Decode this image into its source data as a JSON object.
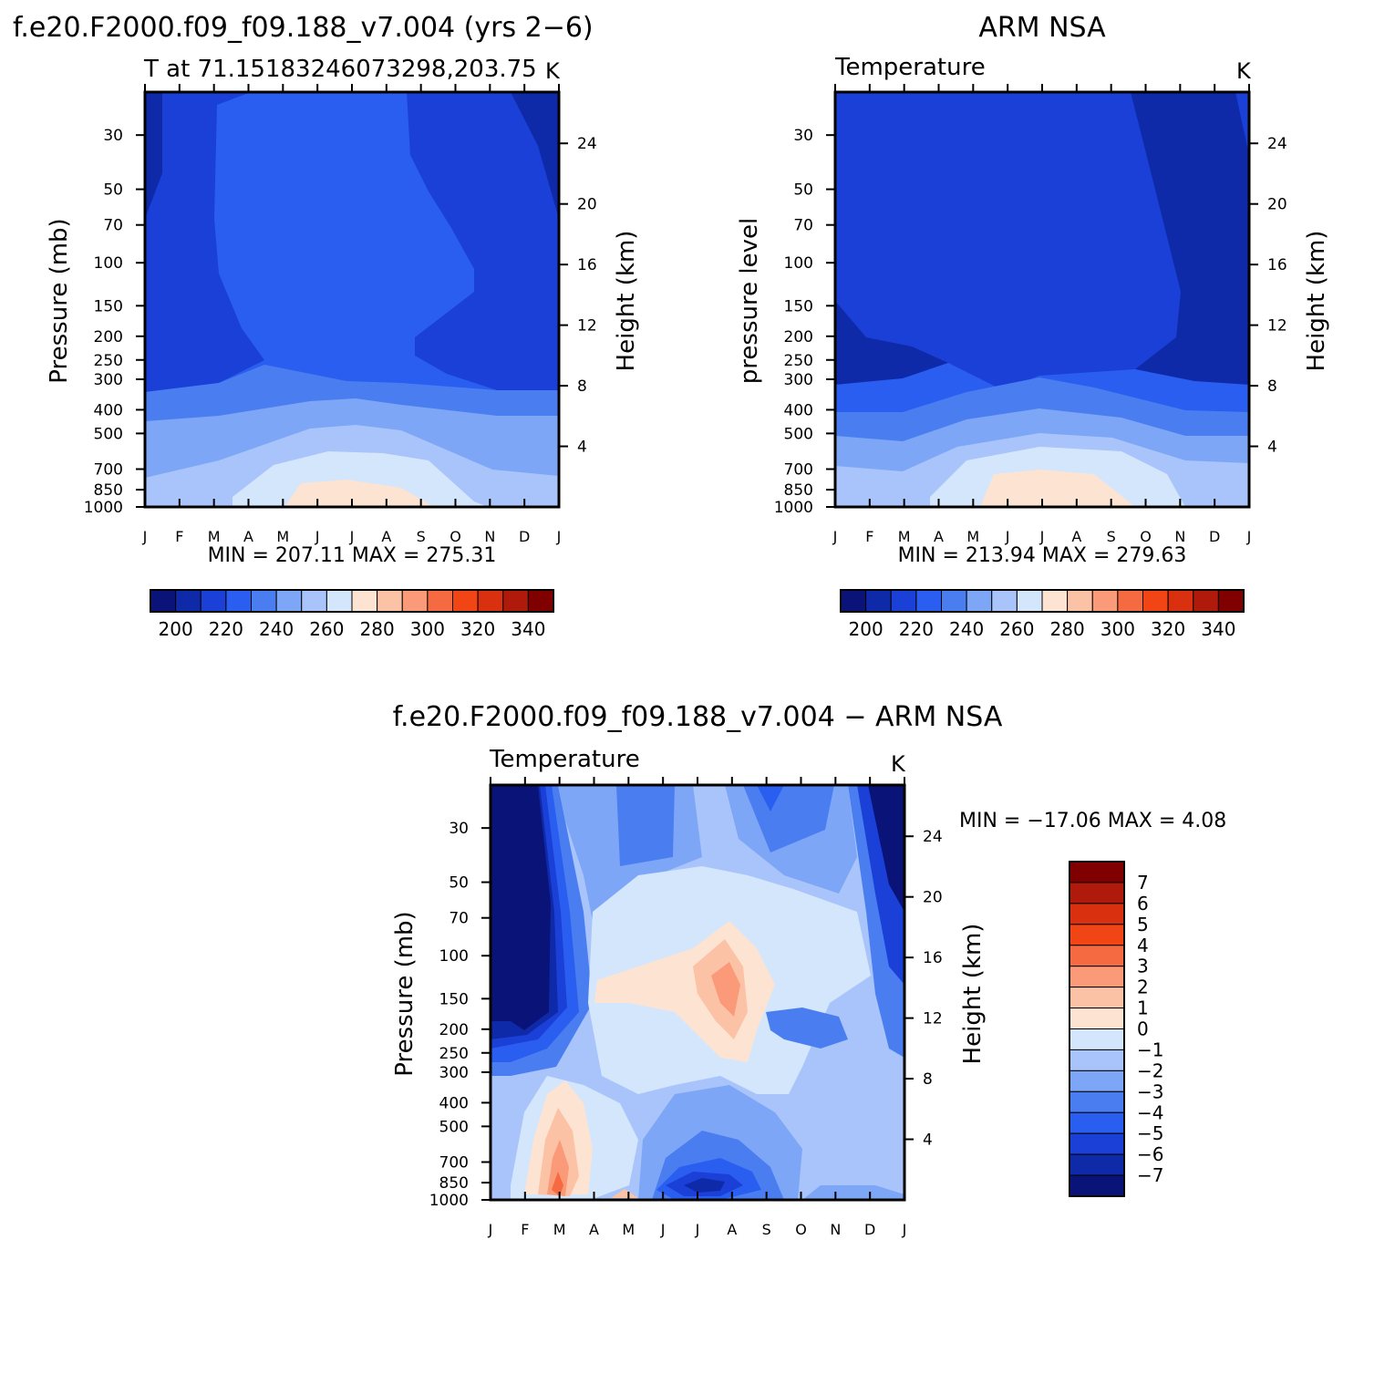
{
  "colors": {
    "abs_palette": [
      "#0a1478",
      "#0f2aa8",
      "#1a40d8",
      "#2a5ef0",
      "#4a7ef0",
      "#7ea6f6",
      "#a9c4fa",
      "#d4e6fc",
      "#fde3d2",
      "#fcc2a6",
      "#fa9a78",
      "#f56a40",
      "#f24516",
      "#d93010",
      "#b01a0a",
      "#800000"
    ],
    "diff_palette": [
      "#800000",
      "#b01a0a",
      "#d93010",
      "#f24516",
      "#f56a40",
      "#fa9a78",
      "#fcc2a6",
      "#fde3d2",
      "#d4e6fc",
      "#a9c4fa",
      "#7ea6f6",
      "#4a7ef0",
      "#2a5ef0",
      "#1a40d8",
      "#0f2aa8",
      "#0a1478"
    ]
  },
  "panels": {
    "model": {
      "page_title": "f.e20.F2000.f09_f09.188_v7.004 (yrs 2−6)",
      "subtitle": "T at 71.15183246073298,203.75",
      "units": "K",
      "y_label": "Pressure (mb)",
      "right_label": "Height (km)",
      "stats": "MIN = 207.11 MAX = 275.31"
    },
    "obs": {
      "page_title": "ARM NSA",
      "subtitle": "Temperature",
      "units": "K",
      "y_label": "pressure level",
      "right_label": "Height (km)",
      "stats": "MIN = 213.94 MAX = 279.63"
    },
    "diff": {
      "page_title": "f.e20.F2000.f09_f09.188_v7.004 − ARM NSA",
      "subtitle": "Temperature",
      "units": "K",
      "y_label": "Pressure (mb)",
      "right_label": "Height (km)",
      "stats": "MIN = −17.06 MAX =    4.08"
    }
  },
  "chart_data": [
    {
      "type": "heatmap",
      "title": "f.e20.F2000.f09_f09.188_v7.004 (yrs 2−6)",
      "subtitle": "T at 71.15183246073298,203.75",
      "units": "K",
      "xlabel": "",
      "ylabel": "Pressure (mb)",
      "y2label": "Height (km)",
      "x_ticks": [
        "J",
        "F",
        "M",
        "A",
        "M",
        "J",
        "J",
        "A",
        "S",
        "O",
        "N",
        "D",
        "J"
      ],
      "pressure_ticks": [
        30,
        50,
        70,
        100,
        150,
        200,
        250,
        300,
        400,
        500,
        700,
        850,
        1000
      ],
      "height_ticks": [
        24,
        20,
        16,
        12,
        8,
        4
      ],
      "colorbar_labels": [
        "200",
        "220",
        "240",
        "260",
        "280",
        "300",
        "320",
        "340"
      ],
      "min": 207.11,
      "max": 275.31,
      "levels_approx": [
        {
          "pressure": 30,
          "T": [
            209,
            216,
            220,
            220,
            222,
            222,
            222,
            222,
            222,
            216,
            213,
            211,
            209
          ]
        },
        {
          "pressure": 100,
          "T": [
            214,
            214,
            218,
            222,
            222,
            222,
            222,
            222,
            222,
            218,
            214,
            214,
            214
          ]
        },
        {
          "pressure": 300,
          "T": [
            216,
            216,
            216,
            222,
            222,
            222,
            222,
            222,
            222,
            216,
            216,
            216,
            216
          ]
        },
        {
          "pressure": 400,
          "T": [
            226,
            226,
            228,
            232,
            234,
            236,
            236,
            236,
            234,
            230,
            228,
            226,
            226
          ]
        },
        {
          "pressure": 500,
          "T": [
            234,
            234,
            236,
            240,
            242,
            244,
            246,
            244,
            242,
            238,
            236,
            234,
            234
          ]
        },
        {
          "pressure": 700,
          "T": [
            246,
            246,
            248,
            254,
            258,
            260,
            262,
            260,
            256,
            252,
            248,
            246,
            246
          ]
        },
        {
          "pressure": 1000,
          "T": [
            252,
            252,
            256,
            262,
            268,
            274,
            275,
            274,
            270,
            262,
            256,
            252,
            252
          ]
        }
      ]
    },
    {
      "type": "heatmap",
      "title": "ARM NSA",
      "subtitle": "Temperature",
      "units": "K",
      "xlabel": "",
      "ylabel": "pressure level",
      "y2label": "Height (km)",
      "x_ticks": [
        "J",
        "F",
        "M",
        "A",
        "M",
        "J",
        "J",
        "A",
        "S",
        "O",
        "N",
        "D",
        "J"
      ],
      "pressure_ticks": [
        30,
        50,
        70,
        100,
        150,
        200,
        250,
        300,
        400,
        500,
        700,
        850,
        1000
      ],
      "height_ticks": [
        24,
        20,
        16,
        12,
        8,
        4
      ],
      "colorbar_labels": [
        "200",
        "220",
        "240",
        "260",
        "280",
        "300",
        "320",
        "340"
      ],
      "min": 213.94,
      "max": 279.63,
      "levels_approx": [
        {
          "pressure": 30,
          "T": [
            222,
            222,
            222,
            222,
            222,
            222,
            224,
            222,
            222,
            218,
            218,
            218,
            222
          ]
        },
        {
          "pressure": 100,
          "T": [
            222,
            222,
            222,
            222,
            222,
            222,
            222,
            222,
            222,
            218,
            218,
            218,
            222
          ]
        },
        {
          "pressure": 300,
          "T": [
            216,
            216,
            216,
            222,
            222,
            222,
            222,
            222,
            222,
            218,
            218,
            218,
            218
          ]
        },
        {
          "pressure": 400,
          "T": [
            228,
            228,
            228,
            232,
            234,
            236,
            238,
            236,
            234,
            230,
            230,
            228,
            228
          ]
        },
        {
          "pressure": 500,
          "T": [
            238,
            238,
            238,
            242,
            244,
            246,
            248,
            246,
            244,
            240,
            240,
            238,
            238
          ]
        },
        {
          "pressure": 700,
          "T": [
            248,
            248,
            248,
            254,
            258,
            264,
            266,
            264,
            258,
            252,
            250,
            248,
            248
          ]
        },
        {
          "pressure": 1000,
          "T": [
            252,
            252,
            254,
            262,
            268,
            276,
            279,
            276,
            270,
            262,
            256,
            252,
            252
          ]
        }
      ]
    },
    {
      "type": "heatmap",
      "title": "f.e20.F2000.f09_f09.188_v7.004 − ARM NSA",
      "subtitle": "Temperature",
      "units": "K",
      "xlabel": "",
      "ylabel": "Pressure (mb)",
      "y2label": "Height (km)",
      "x_ticks": [
        "J",
        "F",
        "M",
        "A",
        "M",
        "J",
        "J",
        "A",
        "S",
        "O",
        "N",
        "D",
        "J"
      ],
      "pressure_ticks": [
        30,
        50,
        70,
        100,
        150,
        200,
        250,
        300,
        400,
        500,
        700,
        850,
        1000
      ],
      "height_ticks": [
        24,
        20,
        16,
        12,
        8,
        4
      ],
      "colorbar_labels": [
        "7",
        "6",
        "5",
        "4",
        "3",
        "2",
        "1",
        "0",
        "−1",
        "−2",
        "−3",
        "−4",
        "−5",
        "−6",
        "−7"
      ],
      "min": -17.06,
      "max": 4.08,
      "levels_approx": [
        {
          "pressure": 30,
          "T": [
            -12,
            -12,
            -4,
            -2,
            -3,
            -2,
            -1,
            -2,
            -4,
            -2,
            -2,
            -6,
            -12
          ]
        },
        {
          "pressure": 100,
          "T": [
            -12,
            -12,
            -5,
            -1,
            0,
            0,
            1,
            1,
            0,
            -1,
            -1,
            -4,
            -12
          ]
        },
        {
          "pressure": 150,
          "T": [
            -12,
            -12,
            -5,
            0,
            1,
            1,
            2,
            3,
            0,
            -1,
            -1,
            -3,
            -10
          ]
        },
        {
          "pressure": 200,
          "T": [
            -10,
            -10,
            -4,
            -1,
            0,
            1,
            1,
            2,
            -1,
            -4,
            -4,
            -2,
            -3
          ]
        },
        {
          "pressure": 300,
          "T": [
            -4,
            -4,
            -1,
            -1,
            0,
            0,
            1,
            1,
            -1,
            -2,
            -2,
            -2,
            -3
          ]
        },
        {
          "pressure": 500,
          "T": [
            -3,
            -2,
            1,
            -1,
            -1,
            -2,
            -2,
            -1,
            -1,
            -3,
            -3,
            -3,
            -3
          ]
        },
        {
          "pressure": 850,
          "T": [
            -3,
            -1,
            3,
            1,
            -1,
            -2,
            -4,
            -5,
            -2,
            -1,
            -2,
            -3,
            -3
          ]
        },
        {
          "pressure": 1000,
          "T": [
            -2,
            0,
            2,
            1,
            0,
            -1,
            -6,
            -3,
            -1,
            -1,
            -2,
            -2,
            -2
          ]
        }
      ]
    }
  ]
}
